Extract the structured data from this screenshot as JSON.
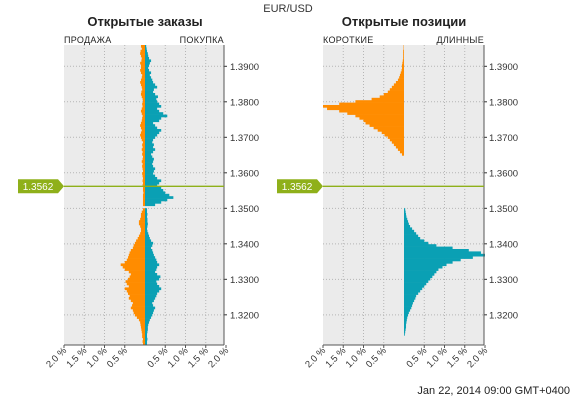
{
  "instrument": "EUR/USD",
  "date_label": "Jan 22, 2014 09:00 GMT+0400",
  "colors": {
    "orange": "#ff8c00",
    "teal": "#0aa0b4",
    "marker": "#8fb01a",
    "plot_bg": "#ebebeb"
  },
  "chart_data": [
    {
      "type": "bar",
      "title": "Открытые заказы",
      "left_label": "ПРОДАЖА",
      "right_label": "ПОКУПКА",
      "current_price": "1.3562",
      "y_ticks": [
        "1.3900",
        "1.3800",
        "1.3700",
        "1.3600",
        "1.3500",
        "1.3400",
        "1.3300",
        "1.3200"
      ],
      "x_ticks": [
        "2.0 %",
        "1.5 %",
        "1.0 %",
        "0.5 %",
        "0.5 %",
        "1.0 %",
        "1.5 %",
        "2.0 %"
      ],
      "ylim": [
        1.3115,
        1.396
      ],
      "xlim_percent": 2.0,
      "series": [
        {
          "side": "sell",
          "color": "#ff8c00",
          "values": [
            0.05,
            0.06,
            0.05,
            0.07,
            0.07,
            0.08,
            0.09,
            0.1,
            0.11,
            0.12,
            0.15,
            0.2,
            0.25,
            0.28,
            0.3,
            0.35,
            0.32,
            0.3,
            0.35,
            0.4,
            0.38,
            0.42,
            0.45,
            0.5,
            0.4,
            0.45,
            0.48,
            0.42,
            0.38,
            0.35,
            0.4,
            0.5,
            0.55,
            0.6,
            0.5,
            0.45,
            0.42,
            0.4,
            0.38,
            0.35,
            0.3,
            0.28,
            0.25,
            0.22,
            0.18,
            0.15,
            0.12,
            0.1,
            0.1,
            0.12,
            0.15,
            0.15,
            0.12,
            0.1,
            0.1,
            0.08,
            0.05,
            0,
            0.05,
            0.05,
            0.05,
            0.05,
            0.05,
            0.04,
            0.05,
            0.05,
            0.06,
            0.05,
            0.06,
            0.05,
            0.06,
            0.07,
            0.05,
            0.06,
            0.07,
            0.06,
            0.08,
            0.06,
            0.05,
            0.07,
            0.06,
            0.08,
            0.06,
            0.07,
            0.05,
            0.08,
            0.1,
            0.12,
            0.1,
            0.08,
            0.1,
            0.12,
            0.1,
            0.08,
            0.07,
            0.06,
            0.08,
            0.1,
            0.08,
            0.06,
            0.07,
            0.05,
            0.06,
            0.08,
            0.1,
            0.09,
            0.07,
            0.08,
            0.1,
            0.12,
            0.1,
            0.08,
            0.07,
            0.1,
            0.12,
            0.1,
            0.1,
            0.12,
            0.09,
            0.08,
            0.1,
            0.12,
            0.11,
            0.08,
            0.1
          ]
        },
        {
          "side": "buy",
          "color": "#0aa0b4",
          "values": [
            0.05,
            0.05,
            0.06,
            0.05,
            0.05,
            0.06,
            0.07,
            0.07,
            0.08,
            0.1,
            0.12,
            0.15,
            0.18,
            0.2,
            0.22,
            0.25,
            0.2,
            0.18,
            0.22,
            0.25,
            0.28,
            0.3,
            0.35,
            0.4,
            0.35,
            0.3,
            0.28,
            0.35,
            0.38,
            0.3,
            0.25,
            0.28,
            0.3,
            0.35,
            0.3,
            0.28,
            0.25,
            0.22,
            0.2,
            0.18,
            0.15,
            0.18,
            0.2,
            0.15,
            0.12,
            0.1,
            0.08,
            0.06,
            0.05,
            0.06,
            0.07,
            0.06,
            0.06,
            0.05,
            0.06,
            0.05,
            0.05,
            0,
            0.25,
            0.4,
            0.55,
            0.7,
            0.6,
            0.5,
            0.45,
            0.4,
            0.3,
            0.35,
            0.4,
            0.3,
            0.25,
            0.2,
            0.22,
            0.25,
            0.2,
            0.18,
            0.2,
            0.22,
            0.18,
            0.15,
            0.2,
            0.25,
            0.2,
            0.22,
            0.18,
            0.2,
            0.25,
            0.3,
            0.35,
            0.4,
            0.3,
            0.25,
            0.2,
            0.35,
            0.4,
            0.55,
            0.45,
            0.35,
            0.3,
            0.4,
            0.35,
            0.3,
            0.28,
            0.32,
            0.25,
            0.2,
            0.22,
            0.3,
            0.25,
            0.2,
            0.18,
            0.15,
            0.12,
            0.15,
            0.1,
            0.08,
            0.1,
            0.12,
            0.15,
            0.1,
            0.08,
            0.07,
            0.05,
            0.04,
            0.03
          ]
        }
      ]
    },
    {
      "type": "bar",
      "title": "Открытые позиции",
      "left_label": "КОРОТКИЕ",
      "right_label": "ДЛИННЫЕ",
      "current_price": "1.3562",
      "y_ticks": [
        "1.3900",
        "1.3800",
        "1.3700",
        "1.3600",
        "1.3500",
        "1.3400",
        "1.3300",
        "1.3200"
      ],
      "x_ticks": [
        "2.0 %",
        "1.5 %",
        "1.0 %",
        "0.5 %",
        "0.5 %",
        "1.0 %",
        "1.5 %",
        "2.0 %"
      ],
      "ylim": [
        1.3115,
        1.396
      ],
      "xlim_percent": 2.0,
      "series": [
        {
          "side": "short",
          "color": "#ff8c00",
          "values": [
            0,
            0,
            0,
            0,
            0,
            0,
            0,
            0,
            0,
            0,
            0,
            0,
            0,
            0,
            0,
            0,
            0,
            0,
            0,
            0,
            0,
            0,
            0,
            0,
            0,
            0,
            0,
            0,
            0,
            0,
            0,
            0,
            0,
            0,
            0,
            0,
            0,
            0,
            0,
            0,
            0,
            0,
            0,
            0,
            0,
            0,
            0,
            0,
            0,
            0,
            0,
            0,
            0,
            0,
            0,
            0,
            0,
            0,
            0,
            0,
            0,
            0,
            0,
            0,
            0,
            0,
            0,
            0,
            0,
            0,
            0,
            0,
            0,
            0,
            0,
            0,
            0,
            0,
            0,
            0.05,
            0.1,
            0.15,
            0.2,
            0.25,
            0.3,
            0.35,
            0.4,
            0.48,
            0.55,
            0.65,
            0.75,
            0.85,
            0.95,
            1.0,
            1.1,
            1.2,
            1.4,
            1.6,
            1.9,
            2.0,
            1.6,
            1.2,
            0.8,
            0.6,
            0.5,
            0.4,
            0.35,
            0.3,
            0.25,
            0.2,
            0.15,
            0.12,
            0.1,
            0.08,
            0.06,
            0.05,
            0.05,
            0.04,
            0.03,
            0.02,
            0.02,
            0.02,
            0.02,
            0.01,
            0.01
          ]
        },
        {
          "side": "long",
          "color": "#0aa0b4",
          "values": [
            0,
            0,
            0,
            0,
            0.02,
            0.03,
            0.04,
            0.05,
            0.05,
            0.06,
            0.07,
            0.08,
            0.1,
            0.12,
            0.15,
            0.18,
            0.2,
            0.22,
            0.25,
            0.28,
            0.3,
            0.35,
            0.4,
            0.45,
            0.5,
            0.55,
            0.6,
            0.65,
            0.7,
            0.75,
            0.8,
            0.85,
            0.95,
            1.05,
            1.2,
            1.4,
            1.7,
            2.0,
            1.9,
            1.6,
            1.2,
            0.8,
            0.6,
            0.5,
            0.4,
            0.35,
            0.3,
            0.25,
            0.2,
            0.15,
            0.12,
            0.1,
            0.08,
            0.06,
            0.05,
            0.04,
            0.03,
            0,
            0,
            0,
            0,
            0,
            0,
            0,
            0,
            0,
            0,
            0,
            0,
            0,
            0,
            0,
            0,
            0,
            0,
            0,
            0,
            0,
            0,
            0,
            0,
            0,
            0,
            0,
            0,
            0,
            0,
            0,
            0,
            0,
            0,
            0,
            0,
            0,
            0,
            0,
            0,
            0,
            0,
            0,
            0,
            0,
            0,
            0,
            0,
            0,
            0,
            0,
            0,
            0,
            0,
            0,
            0,
            0,
            0,
            0,
            0,
            0,
            0,
            0,
            0,
            0,
            0,
            0,
            0,
            0
          ]
        }
      ]
    }
  ]
}
